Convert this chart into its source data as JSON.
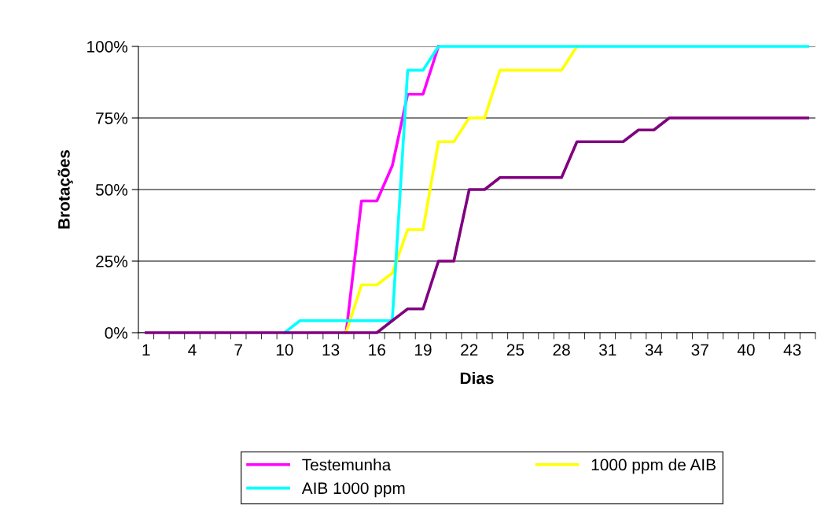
{
  "chart_data": {
    "type": "line",
    "xlabel": "Dias",
    "ylabel": "Brotações",
    "categories": [
      "1",
      null,
      null,
      "4",
      null,
      null,
      "7",
      null,
      null,
      "10",
      null,
      null,
      "13",
      null,
      null,
      "16",
      null,
      null,
      "19",
      null,
      null,
      "22",
      null,
      null,
      "25",
      null,
      null,
      "28",
      null,
      null,
      "31",
      null,
      null,
      "34",
      null,
      null,
      "37",
      null,
      null,
      "40",
      null,
      null,
      "43",
      null
    ],
    "series": [
      {
        "name": "Testemunha",
        "color": "#ff00ff",
        "values": [
          null,
          null,
          null,
          null,
          null,
          null,
          null,
          null,
          null,
          null,
          null,
          null,
          null,
          0,
          46,
          46,
          58.3,
          83.3,
          83.3,
          100,
          null,
          null,
          null,
          null,
          null,
          null,
          null,
          null,
          null,
          null,
          null,
          null,
          null,
          null,
          null,
          null,
          null,
          null,
          null,
          null,
          null,
          null,
          null,
          null
        ]
      },
      {
        "name": "1000 ppm de AIB",
        "color": "#ffff00",
        "values": [
          null,
          null,
          null,
          null,
          null,
          null,
          null,
          null,
          null,
          null,
          null,
          null,
          null,
          0,
          16.7,
          16.7,
          20.8,
          36,
          36,
          66.7,
          66.7,
          75,
          75,
          91.7,
          91.7,
          91.7,
          91.7,
          91.7,
          100,
          null,
          null,
          null,
          null,
          null,
          null,
          null,
          null,
          null,
          null,
          null,
          null,
          null,
          null,
          null
        ]
      },
      {
        "name": "AIB 1000 ppm",
        "color": "#00ffff",
        "values": [
          null,
          null,
          null,
          null,
          null,
          null,
          null,
          null,
          null,
          0,
          4.2,
          4.2,
          4.2,
          4.2,
          4.2,
          4.2,
          4.2,
          91.7,
          91.7,
          100,
          100,
          100,
          100,
          100,
          100,
          100,
          100,
          100,
          100,
          100,
          100,
          100,
          100,
          100,
          100,
          100,
          100,
          100,
          100,
          100,
          100,
          100,
          100,
          100
        ]
      },
      {
        "color": "#800080",
        "values": [
          0,
          0,
          0,
          0,
          0,
          0,
          0,
          0,
          0,
          0,
          0,
          0,
          0,
          0,
          0,
          0,
          4.2,
          8.3,
          8.3,
          25,
          25,
          50,
          50,
          54.2,
          54.2,
          54.2,
          54.2,
          54.2,
          66.7,
          66.7,
          66.7,
          66.7,
          70.8,
          70.8,
          75,
          75,
          75,
          75,
          75,
          75,
          75,
          75,
          75,
          75
        ]
      }
    ],
    "ylim": [
      0,
      100
    ],
    "yticks": [
      {
        "value": 0,
        "label": "0%"
      },
      {
        "value": 25,
        "label": "25%"
      },
      {
        "value": 50,
        "label": "50%"
      },
      {
        "value": 75,
        "label": "75%"
      },
      {
        "value": 100,
        "label": "100%"
      }
    ],
    "grid": "y",
    "legend": "bottom",
    "marker": "none",
    "line_style": "solid"
  }
}
